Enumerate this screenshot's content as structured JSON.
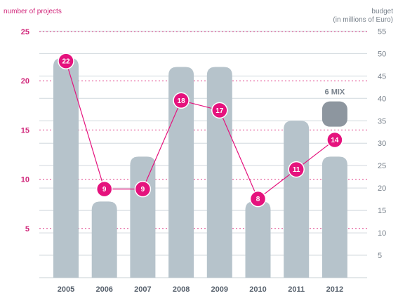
{
  "chart_data": {
    "type": "bar",
    "categories": [
      "2005",
      "2006",
      "2007",
      "2008",
      "2009",
      "2010",
      "2011",
      "2012"
    ],
    "y_left_label": "number of projects",
    "y_left_ticks": [
      5,
      10,
      15,
      20,
      25
    ],
    "y_left_lim": [
      0,
      25.5
    ],
    "y_right_label_line1": "budget",
    "y_right_label_line2": "(in millions of Euro)",
    "y_right_ticks": [
      5,
      10,
      15,
      20,
      25,
      30,
      35,
      40,
      45,
      50,
      55
    ],
    "y_right_lim": [
      0,
      56
    ],
    "series": [
      {
        "kind": "bar",
        "axis": "right",
        "values": [
          49,
          17,
          27,
          47,
          47,
          17,
          35,
          27
        ]
      },
      {
        "kind": "line",
        "axis": "left",
        "values": [
          22,
          9,
          9,
          18,
          17,
          8,
          11,
          14
        ],
        "labels": [
          "22",
          "9",
          "9",
          "18",
          "17",
          "8",
          "11",
          "14"
        ]
      }
    ],
    "mix_marker": {
      "category": "2012",
      "value": 36.5,
      "label": "6 MIX"
    },
    "colors": {
      "bar": "#b6c3cb",
      "line": "#e5127d",
      "mix": "#8d969f",
      "left_axis_text": "#d1267a",
      "right_axis_text": "#7a838d",
      "grid": "#d0d8dd",
      "dotted": "#e0408a"
    },
    "grid": true
  }
}
